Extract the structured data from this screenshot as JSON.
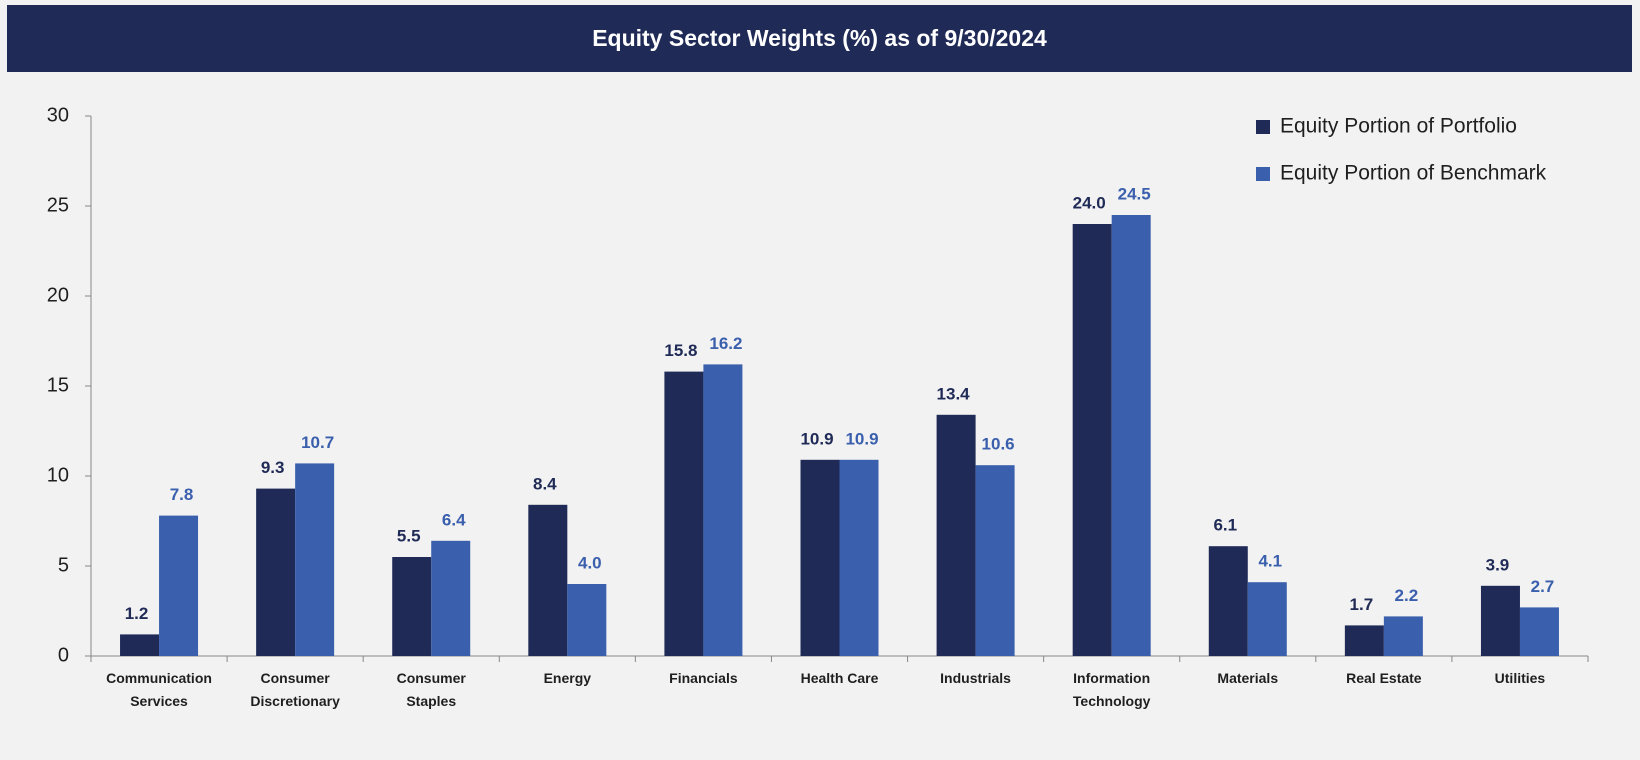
{
  "chart_data": {
    "type": "bar",
    "title": "Equity Sector Weights (%) as of 9/30/2024",
    "categories": [
      "Communication Services",
      "Consumer Discretionary",
      "Consumer Staples",
      "Energy",
      "Financials",
      "Health Care",
      "Industrials",
      "Information Technology",
      "Materials",
      "Real Estate",
      "Utilities"
    ],
    "series": [
      {
        "name": "Equity Portion of Portfolio",
        "color": "#1f2a56",
        "values": [
          1.2,
          9.3,
          5.5,
          8.4,
          15.8,
          10.9,
          13.4,
          24,
          6.1,
          1.7,
          3.9
        ],
        "value_labels": [
          "1.2",
          "9.3",
          "5.5",
          "8.4",
          "15.8",
          "10.9",
          "13.4",
          "24.0",
          "6.1",
          "1.7",
          "3.9"
        ]
      },
      {
        "name": "Equity Portion of Benchmark",
        "color": "#3a5fad",
        "values": [
          7.8,
          10.7,
          6.4,
          4,
          16.2,
          10.9,
          10.6,
          24.5,
          4.1,
          2.2,
          2.7
        ],
        "value_labels": [
          "7.8",
          "10.7",
          "6.4",
          "4.0",
          "16.2",
          "10.9",
          "10.6",
          "24.5",
          "4.1",
          "2.2",
          "2.7"
        ]
      }
    ],
    "ylim": [
      0,
      30
    ],
    "yticks": [
      0,
      5,
      10,
      15,
      20,
      25,
      30
    ],
    "grid": false,
    "legend": "top-right"
  }
}
